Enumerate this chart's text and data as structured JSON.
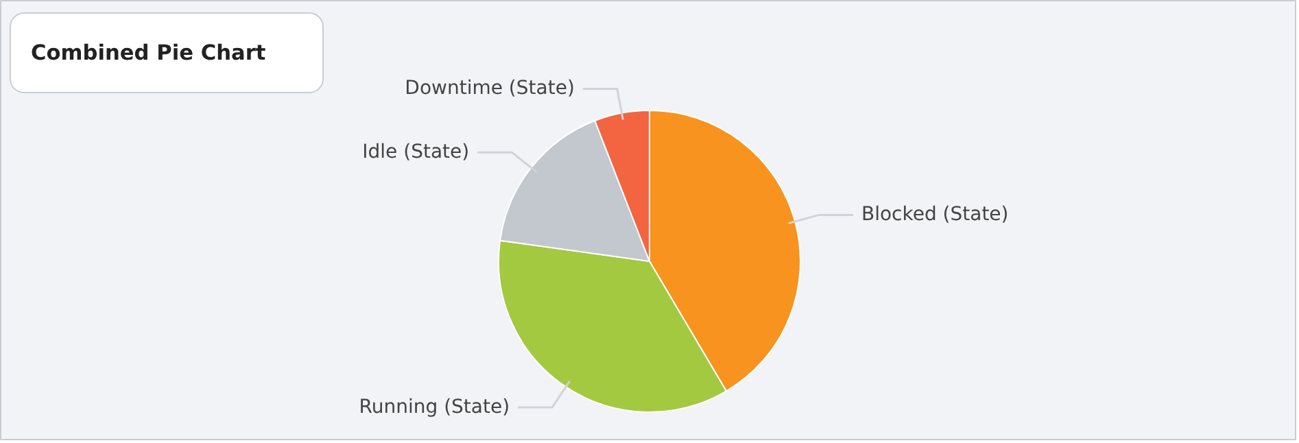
{
  "chart_data": {
    "type": "pie",
    "title": "Combined Pie Chart",
    "categories": [
      "Blocked (State)",
      "Running (State)",
      "Idle (State)",
      "Downtime (State)"
    ],
    "values": [
      41.5,
      35.7,
      16.9,
      5.9
    ],
    "colors": [
      "#f7931e",
      "#a3c940",
      "#c3c7ce",
      "#f26540"
    ]
  }
}
